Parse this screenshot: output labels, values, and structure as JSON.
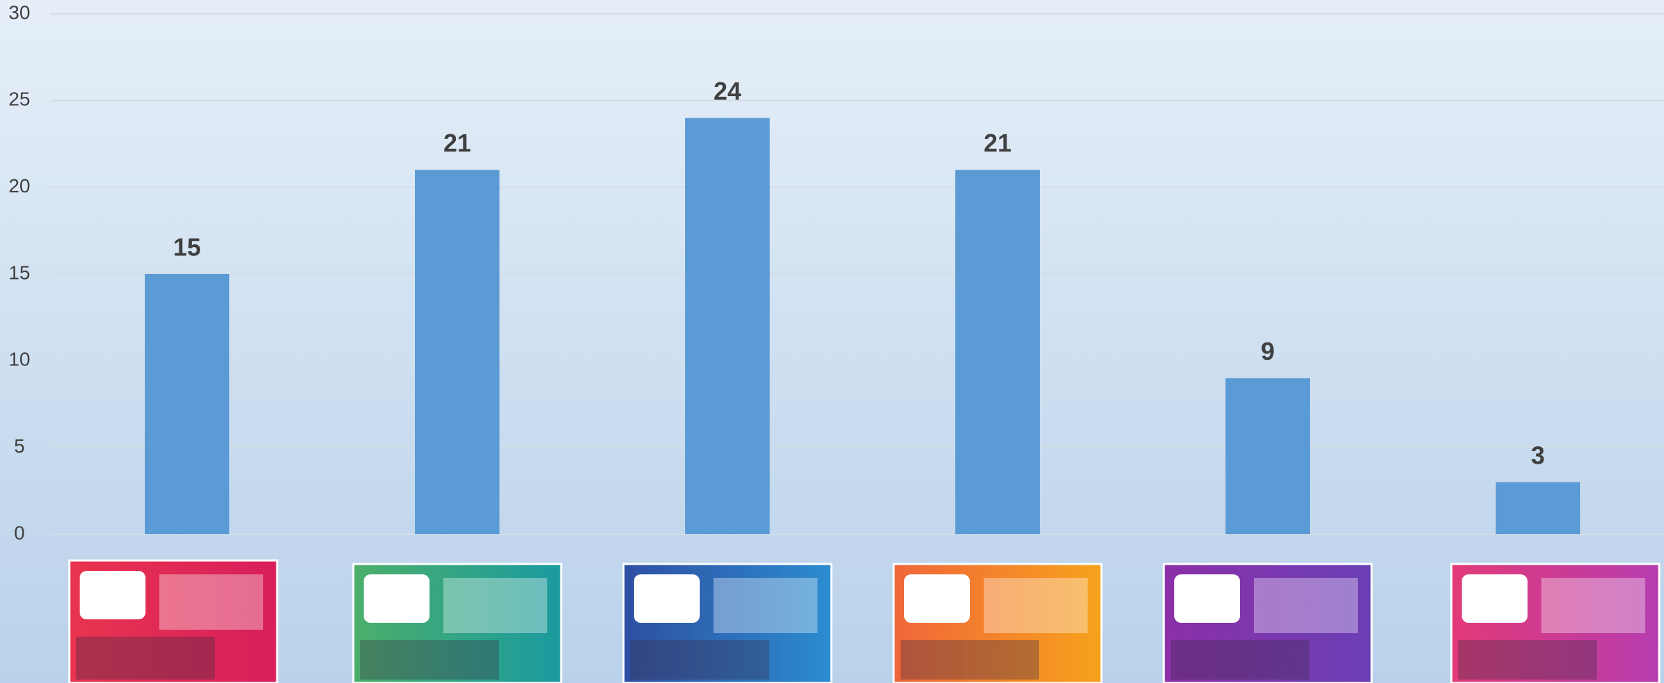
{
  "chart_data": {
    "type": "bar",
    "categories": [
      null,
      null,
      null,
      null,
      null,
      null
    ],
    "values": [
      15,
      21,
      24,
      21,
      9,
      3
    ],
    "color": "#5b9bd5",
    "ylim": [
      0,
      30
    ],
    "yticks": [
      0,
      5,
      10,
      15,
      20,
      25,
      30
    ],
    "grid": true
  }
}
